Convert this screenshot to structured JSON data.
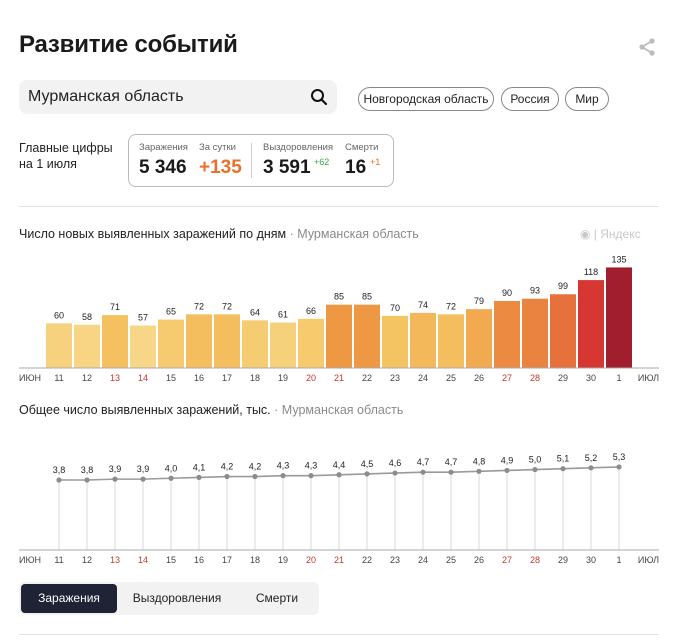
{
  "header": {
    "title": "Развитие событий",
    "share_icon": "share-icon"
  },
  "search": {
    "value": "Мурманская область",
    "icon": "search-icon"
  },
  "region_pills": [
    "Новгородская область",
    "Россия",
    "Мир"
  ],
  "main_figures": {
    "label_line1": "Главные цифры",
    "label_line2": "на 1 июля",
    "infections_label": "Заражения",
    "infections_value": "5 346",
    "per_day_label": "За сутки",
    "per_day_value": "+135",
    "recovered_label": "Выздоровления",
    "recovered_value": "3 591",
    "recovered_delta": "+62",
    "deaths_label": "Смерти",
    "deaths_value": "16",
    "deaths_delta": "+1",
    "colors": {
      "per_day": "#e8702a",
      "recovered_delta": "#3fa34d",
      "deaths_delta": "#e8702a"
    }
  },
  "chart1": {
    "title": "Число новых выявленных заражений по дням",
    "region": "Мурманская область",
    "watermark": "Яндекс"
  },
  "chart2": {
    "title": "Общее число выявленных заражений, тыс.",
    "region": "Мурманская область"
  },
  "chart_data": [
    {
      "type": "bar",
      "title": "Число новых выявленных заражений по дням",
      "categories": [
        "11",
        "12",
        "13",
        "14",
        "15",
        "16",
        "17",
        "18",
        "19",
        "20",
        "21",
        "22",
        "23",
        "24",
        "25",
        "26",
        "27",
        "28",
        "29",
        "30",
        "1"
      ],
      "values": [
        60,
        58,
        71,
        57,
        65,
        72,
        72,
        64,
        61,
        66,
        85,
        85,
        70,
        74,
        72,
        79,
        90,
        93,
        99,
        118,
        135
      ],
      "weekend_indices": [
        2,
        3,
        9,
        10,
        16,
        17
      ],
      "month_labels": {
        "start": "ИЮН",
        "end": "ИЮЛ"
      },
      "ylim": [
        0,
        140
      ]
    },
    {
      "type": "line",
      "title": "Общее число выявленных заражений, тыс.",
      "categories": [
        "11",
        "12",
        "13",
        "14",
        "15",
        "16",
        "17",
        "18",
        "19",
        "20",
        "21",
        "22",
        "23",
        "24",
        "25",
        "26",
        "27",
        "28",
        "29",
        "30",
        "1"
      ],
      "values": [
        3.8,
        3.8,
        3.9,
        3.9,
        4.0,
        4.1,
        4.2,
        4.2,
        4.3,
        4.3,
        4.4,
        4.5,
        4.6,
        4.7,
        4.7,
        4.8,
        4.9,
        5.0,
        5.1,
        5.2,
        5.3
      ],
      "labels": [
        "3,8",
        "3,8",
        "3,9",
        "3,9",
        "4,0",
        "4,1",
        "4,2",
        "4,2",
        "4,3",
        "4,3",
        "4,4",
        "4,5",
        "4,6",
        "4,7",
        "4,7",
        "4,8",
        "4,9",
        "5,0",
        "5,1",
        "5,2",
        "5,3"
      ],
      "weekend_indices": [
        2,
        3,
        9,
        10,
        16,
        17
      ],
      "month_labels": {
        "start": "ИЮН",
        "end": "ИЮЛ"
      },
      "ylim": [
        0,
        5.5
      ]
    }
  ],
  "tabs": [
    "Заражения",
    "Выздоровления",
    "Смерти"
  ],
  "active_tab": "Заражения"
}
